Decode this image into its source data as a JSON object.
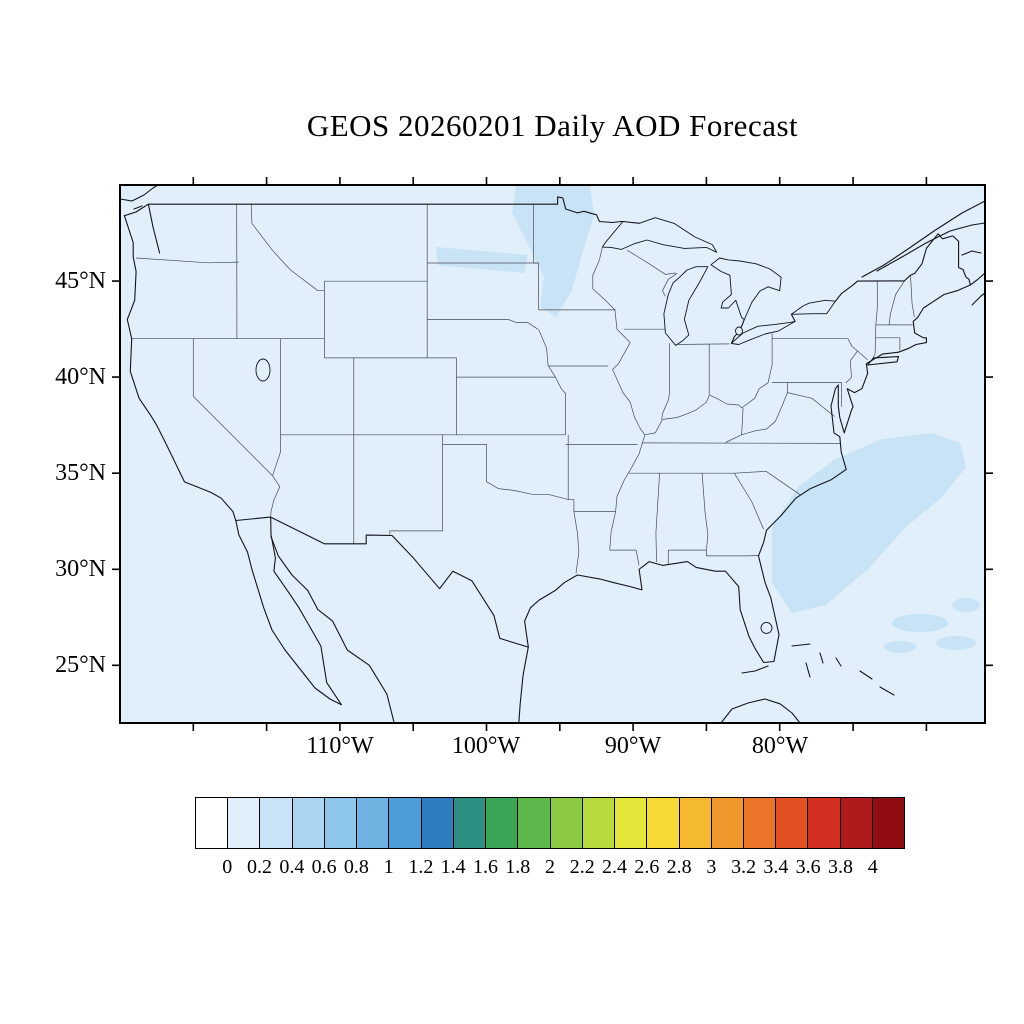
{
  "title": "GEOS 20260201 Daily AOD Forecast",
  "axes": {
    "lat_labels": [
      "45°N",
      "40°N",
      "35°N",
      "30°N",
      "25°N"
    ],
    "lon_labels": [
      "110°W",
      "100°W",
      "90°W",
      "80°W"
    ]
  },
  "colors": {
    "page_background": "#ffffff",
    "map_background": "#e0effa",
    "aod_patch": "#c7e3f5",
    "coastline": "#14141a",
    "state_line": "#4a4a55",
    "frame": "#000000"
  },
  "chart_data": {
    "type": "heatmap",
    "title": "GEOS 20260201 Daily AOD Forecast",
    "variable": "Daily AOD",
    "model": "GEOS",
    "date": "20260201",
    "projection": "lat-lon map of the continental United States",
    "x_tick_labels": [
      "110°W",
      "100°W",
      "90°W",
      "80°W"
    ],
    "y_tick_labels": [
      "45°N",
      "40°N",
      "35°N",
      "30°N",
      "25°N"
    ],
    "lon_range": [
      "125°W",
      "66°W"
    ],
    "lat_range": [
      "22°N",
      "50°N"
    ],
    "colorbar": {
      "orientation": "horizontal",
      "tick_labels": [
        "0",
        "0.2",
        "0.4",
        "0.6",
        "0.8",
        "1",
        "1.2",
        "1.4",
        "1.6",
        "1.8",
        "2",
        "2.2",
        "2.4",
        "2.6",
        "2.8",
        "3",
        "3.2",
        "3.4",
        "3.6",
        "3.8",
        "4"
      ],
      "colors": [
        "#ffffff",
        "#e0effa",
        "#c7e3f5",
        "#abd5f0",
        "#8ec6ea",
        "#6eb3e2",
        "#4c9cd7",
        "#2e7ebf",
        "#2e8f84",
        "#3aa655",
        "#5cb84a",
        "#8cca43",
        "#b8da3e",
        "#e3e73a",
        "#f6d935",
        "#f5b92f",
        "#f1982c",
        "#ec7428",
        "#e35024",
        "#d32f20",
        "#b01b1a",
        "#8e0e12"
      ]
    },
    "data_regions": [
      {
        "region": "Eastern North Dakota / western Minnesota",
        "aod_range": "0.2-0.4"
      },
      {
        "region": "Atlantic Ocean off the southeast U.S. coast",
        "aod_range": "0.2-0.4"
      },
      {
        "region": "Rest of domain (land and ocean)",
        "aod_range": "0-0.2"
      }
    ]
  }
}
